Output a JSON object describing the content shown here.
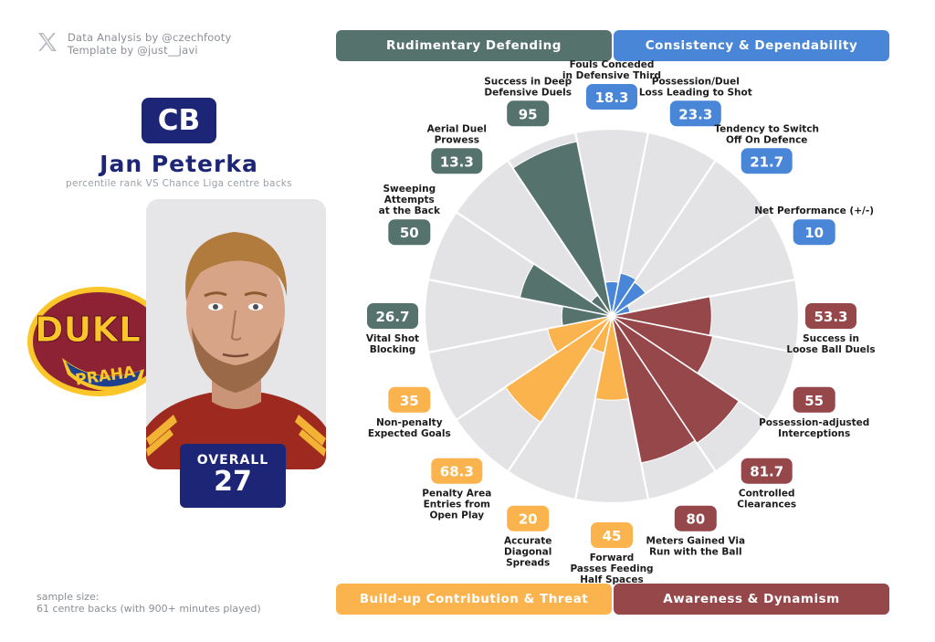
{
  "credits": {
    "line1": "Data Analysis by @czechfooty",
    "line2": "Template by @just__javi"
  },
  "player": {
    "position": "CB",
    "name": "Jan Peterka",
    "subtitle": "percentile rank VS Chance Liga centre backs",
    "overall_label": "OVERALL",
    "overall_value": "27"
  },
  "club": {
    "logo_top": "DUKL",
    "logo_bottom": "PRAHA"
  },
  "sample": {
    "line1": "sample size:",
    "line2": "61 centre backs (with 900+ minutes played)"
  },
  "categories": [
    {
      "name": "Rudimentary Defending",
      "color": "#56726c"
    },
    {
      "name": "Consistency & Dependability",
      "color": "#4a86d8"
    },
    {
      "name": "Build-up Contribution & Threat",
      "color": "#fbb44d"
    },
    {
      "name": "Awareness & Dynamism",
      "color": "#96474a"
    }
  ],
  "chart_data": {
    "type": "radar",
    "scale": [
      0,
      100
    ],
    "grid": false,
    "metrics": [
      {
        "label": [
          "Fouls Conceded",
          "in Defensive Third"
        ],
        "value": 18.3,
        "display": "18.3",
        "category": 1
      },
      {
        "label": [
          "Possession/Duel",
          "Loss Leading to Shot"
        ],
        "value": 23.3,
        "display": "23.3",
        "category": 1
      },
      {
        "label": [
          "Tendency to Switch",
          "Off On Defence"
        ],
        "value": 21.7,
        "display": "21.7",
        "category": 1
      },
      {
        "label": [
          "Net Performance (+/-)"
        ],
        "value": 10,
        "display": "10",
        "category": 1
      },
      {
        "label": [
          "Success in",
          "Loose Ball Duels"
        ],
        "value": 53.3,
        "display": "53.3",
        "category": 3
      },
      {
        "label": [
          "Possession-adjusted",
          "Interceptions"
        ],
        "value": 55,
        "display": "55",
        "category": 3
      },
      {
        "label": [
          "Controlled",
          "Clearances"
        ],
        "value": 81.7,
        "display": "81.7",
        "category": 3
      },
      {
        "label": [
          "Meters Gained Via",
          "Run with the Ball"
        ],
        "value": 80,
        "display": "80",
        "category": 3
      },
      {
        "label": [
          "Forward",
          "Passes Feeding",
          "Half Spaces"
        ],
        "value": 45,
        "display": "45",
        "category": 2
      },
      {
        "label": [
          "Accurate",
          "Diagonal",
          "Spreads"
        ],
        "value": 20,
        "display": "20",
        "category": 2
      },
      {
        "label": [
          "Penalty Area",
          "Entries from",
          "Open Play"
        ],
        "value": 68.3,
        "display": "68.3",
        "category": 2
      },
      {
        "label": [
          "Non-penalty",
          "Expected Goals"
        ],
        "value": 35,
        "display": "35",
        "category": 2
      },
      {
        "label": [
          "Vital Shot",
          "Blocking"
        ],
        "value": 26.7,
        "display": "26.7",
        "category": 0
      },
      {
        "label": [
          "Sweeping",
          "Attempts",
          "at the Back"
        ],
        "value": 50,
        "display": "50",
        "category": 0
      },
      {
        "label": [
          "Aerial Duel",
          "Prowess"
        ],
        "value": 13.3,
        "display": "13.3",
        "category": 0
      },
      {
        "label": [
          "Success in Deep",
          "Defensive Duels"
        ],
        "value": 95,
        "display": "95",
        "category": 0
      }
    ]
  }
}
